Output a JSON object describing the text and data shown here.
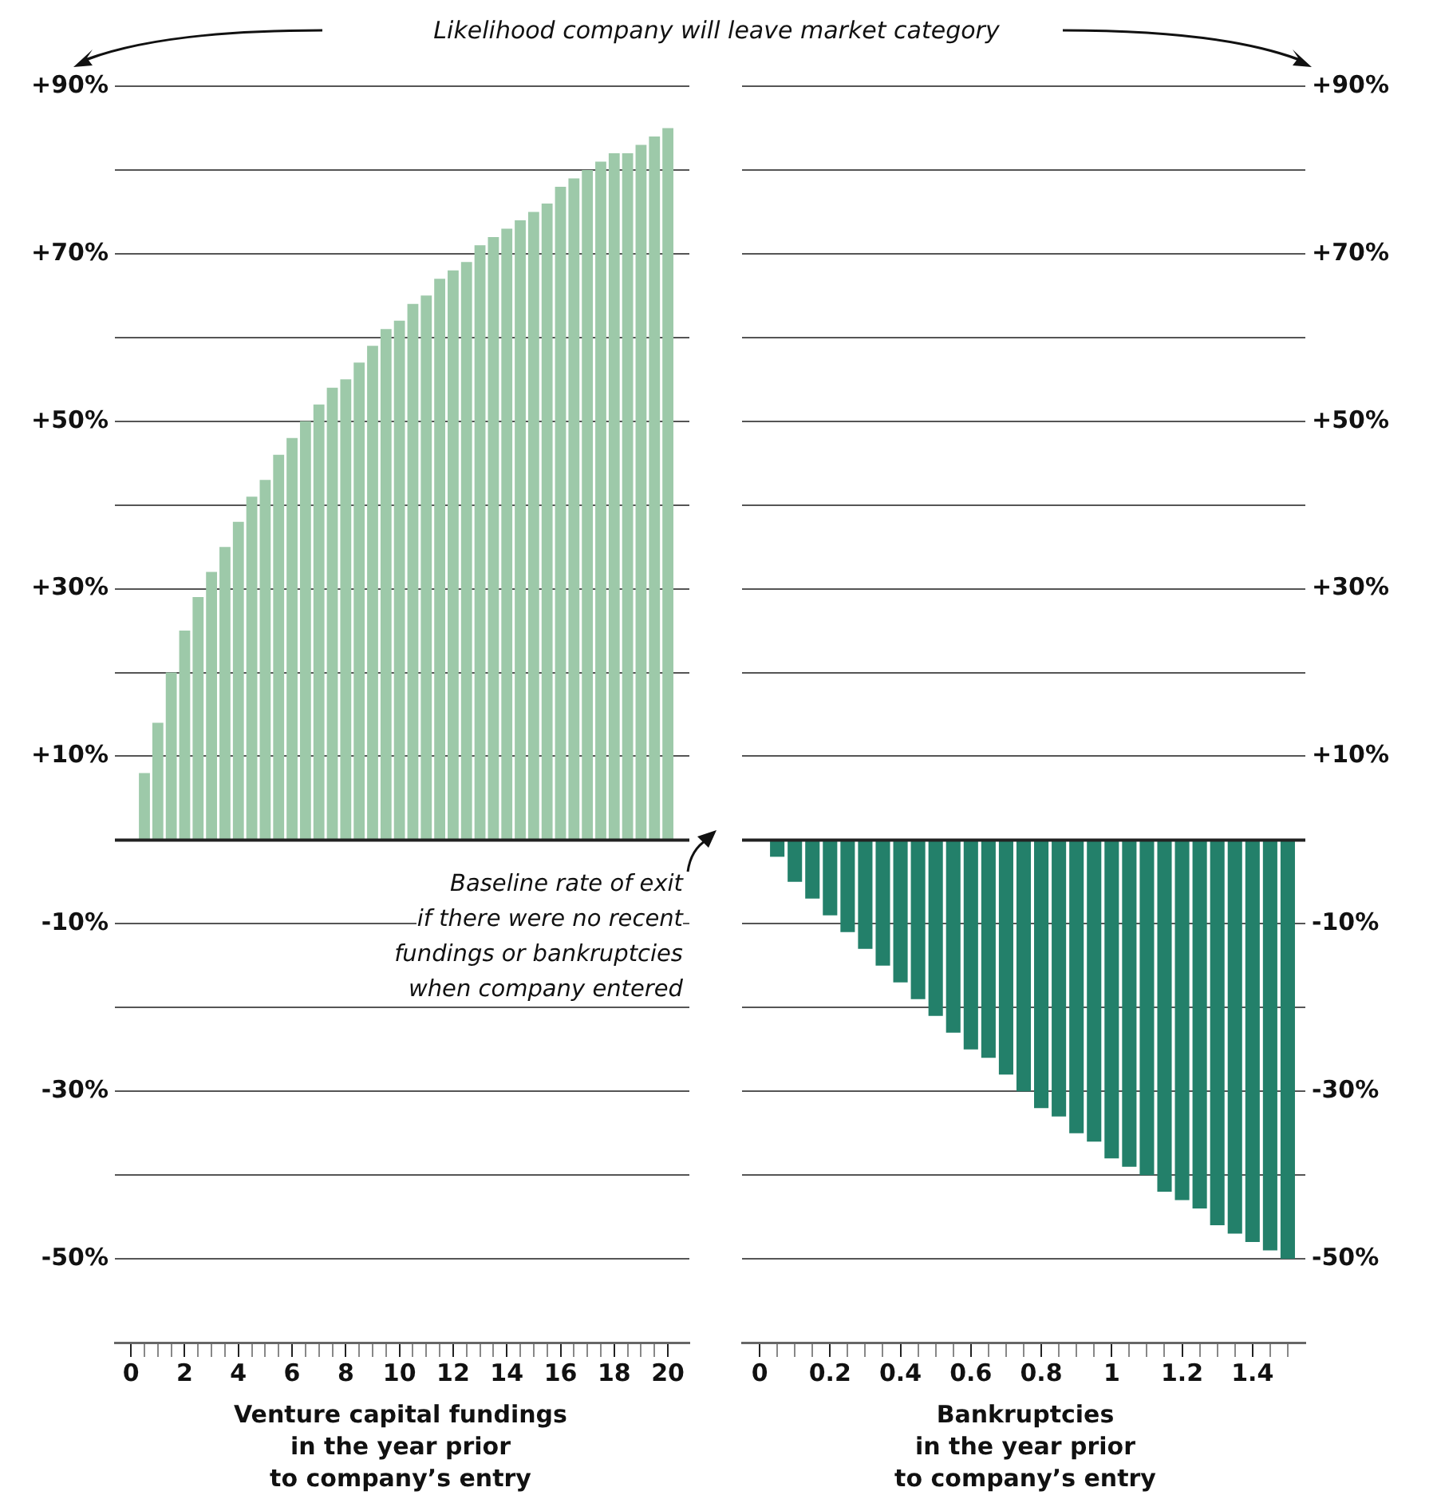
{
  "chart_data": [
    {
      "type": "bar",
      "title": "Likelihood company will leave market category",
      "xlabel": "Venture capital fundings\nin the year prior\nto company’s entry",
      "annotations": [
        "Baseline rate of exit\nif there were no recent\nfundings or bankruptcies\nwhen company entered"
      ],
      "x": [
        0.5,
        1,
        1.5,
        2,
        2.5,
        3,
        3.5,
        4,
        4.5,
        5,
        5.5,
        6,
        6.5,
        7,
        7.5,
        8,
        8.5,
        9,
        9.5,
        10,
        10.5,
        11,
        11.5,
        12,
        12.5,
        13,
        13.5,
        14,
        14.5,
        15,
        15.5,
        16,
        16.5,
        17,
        17.5,
        18,
        18.5,
        19,
        19.5,
        20
      ],
      "series": [
        {
          "color": "#9dc9a9",
          "values": [
            8,
            14,
            20,
            25,
            29,
            32,
            35,
            38,
            41,
            43,
            46,
            48,
            50,
            52,
            54,
            55,
            57,
            59,
            61,
            62,
            64,
            65,
            67,
            68,
            69,
            71,
            72,
            73,
            74,
            75,
            76,
            78,
            79,
            80,
            81,
            82,
            82,
            83,
            84,
            85
          ]
        }
      ],
      "xlim": [
        -0.6,
        20.8
      ],
      "xticks": [
        0,
        {
          "value": 0.5,
          "label": null
        },
        {
          "value": 1,
          "label": null
        },
        {
          "value": 1.5,
          "label": null
        },
        2,
        {
          "value": 2.5,
          "label": null
        },
        {
          "value": 3,
          "label": null
        },
        {
          "value": 3.5,
          "label": null
        },
        4,
        {
          "value": 4.5,
          "label": null
        },
        {
          "value": 5,
          "label": null
        },
        {
          "value": 5.5,
          "label": null
        },
        6,
        {
          "value": 6.5,
          "label": null
        },
        {
          "value": 7,
          "label": null
        },
        {
          "value": 7.5,
          "label": null
        },
        8,
        {
          "value": 8.5,
          "label": null
        },
        {
          "value": 9,
          "label": null
        },
        {
          "value": 9.5,
          "label": null
        },
        10,
        {
          "value": 10.5,
          "label": null
        },
        {
          "value": 11,
          "label": null
        },
        {
          "value": 11.5,
          "label": null
        },
        12,
        {
          "value": 12.5,
          "label": null
        },
        {
          "value": 13,
          "label": null
        },
        {
          "value": 13.5,
          "label": null
        },
        14,
        {
          "value": 14.5,
          "label": null
        },
        {
          "value": 15,
          "label": null
        },
        {
          "value": 15.5,
          "label": null
        },
        16,
        {
          "value": 16.5,
          "label": null
        },
        {
          "value": 17,
          "label": null
        },
        {
          "value": 17.5,
          "label": null
        },
        18,
        {
          "value": 18.5,
          "label": null
        },
        {
          "value": 19,
          "label": null
        },
        {
          "value": 19.5,
          "label": null
        },
        20
      ],
      "ylim": [
        -60,
        90
      ],
      "yticks": [
        {
          "value": -50,
          "label": "-50%"
        },
        {
          "value": -40,
          "label": null
        },
        {
          "value": -30,
          "label": "-30%"
        },
        {
          "value": -20,
          "label": null
        },
        {
          "value": -10,
          "label": "-10%"
        },
        {
          "value": 0,
          "label": null
        },
        {
          "value": 10,
          "label": "+10%"
        },
        {
          "value": 20,
          "label": null
        },
        {
          "value": 30,
          "label": "+30%"
        },
        {
          "value": 40,
          "label": null
        },
        {
          "value": 50,
          "label": "+50%"
        },
        {
          "value": 60,
          "label": null
        },
        {
          "value": 70,
          "label": "+70%"
        },
        {
          "value": 80,
          "label": null
        },
        {
          "value": 90,
          "label": "+90%"
        }
      ],
      "grid": "y",
      "ref_lines": [
        {
          "axis": "y",
          "value": 0,
          "color": "#222222"
        }
      ]
    },
    {
      "type": "bar",
      "xlabel": "Bankruptcies\nin the year prior\nto company’s entry",
      "x": [
        0.05,
        0.1,
        0.15,
        0.2,
        0.25,
        0.3,
        0.35,
        0.4,
        0.45,
        0.5,
        0.55,
        0.6,
        0.65,
        0.7,
        0.75,
        0.8,
        0.85,
        0.9,
        0.95,
        1,
        1.05,
        1.1,
        1.15,
        1.2,
        1.25,
        1.3,
        1.35,
        1.4,
        1.45,
        1.5
      ],
      "series": [
        {
          "color": "#23806a",
          "axis": "y2",
          "values": [
            -2,
            -5,
            -7,
            -9,
            -11,
            -13,
            -15,
            -17,
            -19,
            -21,
            -23,
            -25,
            -26,
            -28,
            -30,
            -32,
            -33,
            -35,
            -36,
            -38,
            -39,
            -40,
            -42,
            -43,
            -44,
            -46,
            -47,
            -48,
            -49,
            -50
          ]
        }
      ],
      "xlim": [
        -0.05,
        1.55
      ],
      "xticks": [
        0,
        {
          "value": 0.05,
          "label": null
        },
        {
          "value": 0.1,
          "label": null
        },
        {
          "value": 0.15,
          "label": null
        },
        0.2,
        {
          "value": 0.25,
          "label": null
        },
        {
          "value": 0.3,
          "label": null
        },
        {
          "value": 0.35,
          "label": null
        },
        0.4,
        {
          "value": 0.45,
          "label": null
        },
        {
          "value": 0.5,
          "label": null
        },
        {
          "value": 0.55,
          "label": null
        },
        0.6,
        {
          "value": 0.65,
          "label": null
        },
        {
          "value": 0.7,
          "label": null
        },
        {
          "value": 0.75,
          "label": null
        },
        0.8,
        {
          "value": 0.85,
          "label": null
        },
        {
          "value": 0.9,
          "label": null
        },
        {
          "value": 0.95,
          "label": null
        },
        1,
        {
          "value": 1.05,
          "label": null
        },
        {
          "value": 1.1,
          "label": null
        },
        {
          "value": 1.15,
          "label": null
        },
        1.2,
        {
          "value": 1.25,
          "label": null
        },
        {
          "value": 1.3,
          "label": null
        },
        {
          "value": 1.35,
          "label": null
        },
        1.4,
        {
          "value": 1.45,
          "label": null
        },
        {
          "value": 1.5,
          "label": null
        }
      ],
      "y2lim": [
        -60,
        90
      ],
      "y2ticks": [
        {
          "value": -50,
          "label": "-50%"
        },
        {
          "value": -40,
          "label": null
        },
        {
          "value": -30,
          "label": "-30%"
        },
        {
          "value": -20,
          "label": null
        },
        {
          "value": -10,
          "label": "-10%"
        },
        {
          "value": 0,
          "label": null
        },
        {
          "value": 10,
          "label": "+10%"
        },
        {
          "value": 20,
          "label": null
        },
        {
          "value": 30,
          "label": "+30%"
        },
        {
          "value": 40,
          "label": null
        },
        {
          "value": 50,
          "label": "+50%"
        },
        {
          "value": 60,
          "label": null
        },
        {
          "value": 70,
          "label": "+70%"
        },
        {
          "value": 80,
          "label": null
        },
        {
          "value": 90,
          "label": "+90%"
        }
      ],
      "grid": "y",
      "ref_lines": [
        {
          "axis": "y2",
          "value": 0,
          "color": "#222222"
        }
      ]
    }
  ]
}
